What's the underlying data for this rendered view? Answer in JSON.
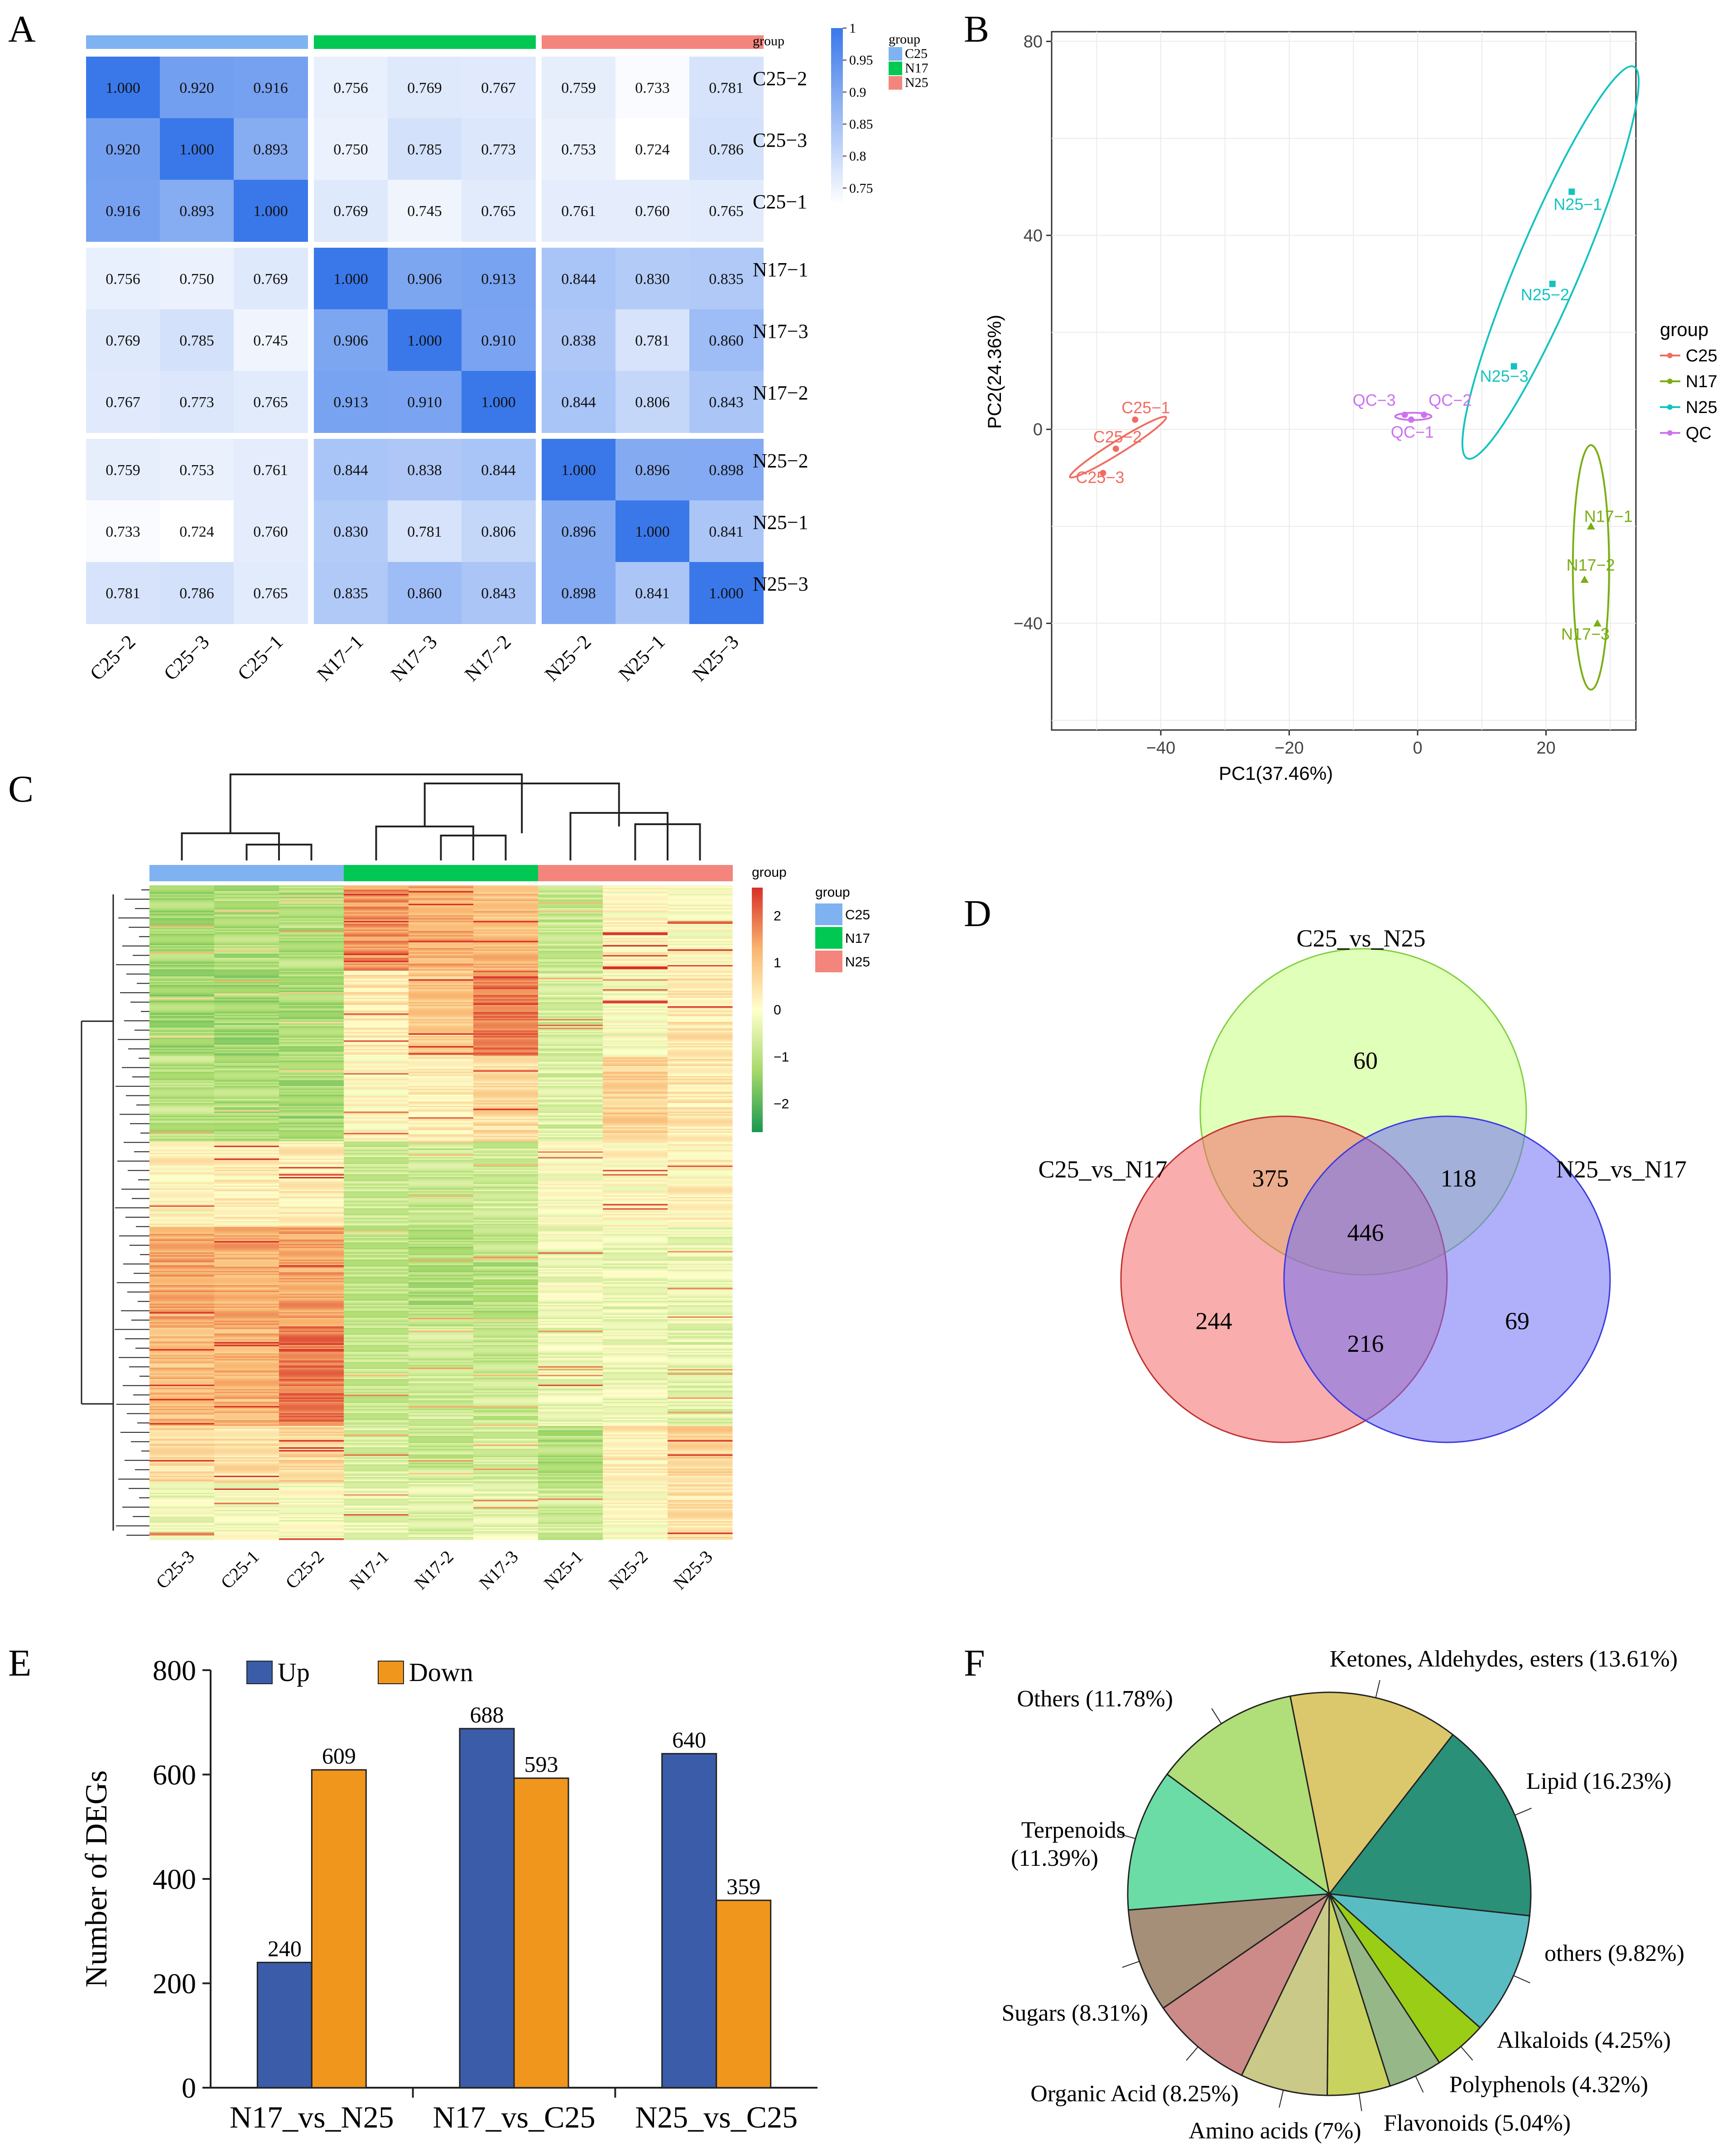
{
  "panel_labels": {
    "A": "A",
    "B": "B",
    "C": "C",
    "D": "D",
    "E": "E",
    "F": "F"
  },
  "colors": {
    "C25": "#7fb2f0",
    "N17": "#00c853",
    "N25": "#f4857d",
    "pca_C25": "#f06c5f",
    "pca_N17": "#7aae13",
    "pca_N25": "#14c3c0",
    "pca_QC": "#cc72ee",
    "up": "#3a5ca9",
    "down": "#f0961c",
    "venn_a": "#ccff88",
    "venn_b": "#f46a6a",
    "venn_c": "#6f6ff5"
  },
  "chart_data": [
    {
      "panel": "A",
      "type": "heatmap",
      "title": "",
      "samples": [
        "C25−2",
        "C25−3",
        "C25−1",
        "N17−1",
        "N17−3",
        "N17−2",
        "N25−2",
        "N25−1",
        "N25−3"
      ],
      "groups": [
        "C25",
        "C25",
        "C25",
        "N17",
        "N17",
        "N17",
        "N25",
        "N25",
        "N25"
      ],
      "matrix": [
        [
          "1.000",
          "0.920",
          "0.916",
          "0.756",
          "0.769",
          "0.767",
          "0.759",
          "0.733",
          "0.781"
        ],
        [
          "0.920",
          "1.000",
          "0.893",
          "0.750",
          "0.785",
          "0.773",
          "0.753",
          "0.724",
          "0.786"
        ],
        [
          "0.916",
          "0.893",
          "1.000",
          "0.769",
          "0.745",
          "0.765",
          "0.761",
          "0.760",
          "0.765"
        ],
        [
          "0.756",
          "0.750",
          "0.769",
          "1.000",
          "0.906",
          "0.913",
          "0.844",
          "0.830",
          "0.835"
        ],
        [
          "0.769",
          "0.785",
          "0.745",
          "0.906",
          "1.000",
          "0.910",
          "0.838",
          "0.781",
          "0.860"
        ],
        [
          "0.767",
          "0.773",
          "0.765",
          "0.913",
          "0.910",
          "1.000",
          "0.844",
          "0.806",
          "0.843"
        ],
        [
          "0.759",
          "0.753",
          "0.761",
          "0.844",
          "0.838",
          "0.844",
          "1.000",
          "0.896",
          "0.898"
        ],
        [
          "0.733",
          "0.724",
          "0.760",
          "0.830",
          "0.781",
          "0.806",
          "0.896",
          "1.000",
          "0.841"
        ],
        [
          "0.781",
          "0.786",
          "0.765",
          "0.835",
          "0.860",
          "0.843",
          "0.898",
          "0.841",
          "1.000"
        ]
      ],
      "colorbar_ticks": [
        "1",
        "0.95",
        "0.9",
        "0.85",
        "0.8",
        "0.75"
      ],
      "colorbar_range": [
        0.724,
        1.0
      ],
      "annotation_title": "group",
      "legend": [
        "C25",
        "N17",
        "N25"
      ]
    },
    {
      "panel": "B",
      "type": "scatter",
      "xlabel": "PC1(37.46%)",
      "ylabel": "PC2(24.36%)",
      "xlim": [
        -57,
        34
      ],
      "ylim": [
        -62,
        82
      ],
      "xticks": [
        -40,
        -20,
        0,
        20
      ],
      "xtick_labels": [
        "−40",
        "−20",
        "0",
        "20"
      ],
      "yticks": [
        80,
        40,
        0,
        -40
      ],
      "ytick_labels": [
        "80",
        "40",
        "0",
        "−40"
      ],
      "legend_title": "group",
      "legend": [
        "C25",
        "N17",
        "N25",
        "QC"
      ],
      "points": [
        {
          "label": "C25−1",
          "group": "C25",
          "x": -44,
          "y": 2
        },
        {
          "label": "C25−2",
          "group": "C25",
          "x": -47,
          "y": -4
        },
        {
          "label": "C25−3",
          "group": "C25",
          "x": -49,
          "y": -9
        },
        {
          "label": "N25−1",
          "group": "N25",
          "x": 24,
          "y": 49
        },
        {
          "label": "N25−2",
          "group": "N25",
          "x": 21,
          "y": 30
        },
        {
          "label": "N25−3",
          "group": "N25",
          "x": 15,
          "y": 13
        },
        {
          "label": "N17−1",
          "group": "N17",
          "x": 27,
          "y": -20
        },
        {
          "label": "N17−2",
          "group": "N17",
          "x": 26,
          "y": -31
        },
        {
          "label": "N17−3",
          "group": "N17",
          "x": 28,
          "y": -40
        },
        {
          "label": "QC−3",
          "group": "QC",
          "x": -2,
          "y": 3
        },
        {
          "label": "QC−2",
          "group": "QC",
          "x": 1,
          "y": 3
        },
        {
          "label": "QC−1",
          "group": "QC",
          "x": -1,
          "y": 2
        }
      ]
    },
    {
      "panel": "C",
      "type": "heatmap",
      "samples": [
        "C25-3",
        "C25-1",
        "C25-2",
        "N17-1",
        "N17-2",
        "N17-3",
        "N25-1",
        "N25-2",
        "N25-3"
      ],
      "groups": [
        "C25",
        "C25",
        "C25",
        "N17",
        "N17",
        "N17",
        "N25",
        "N25",
        "N25"
      ],
      "annotation_title": "group",
      "legend": [
        "C25",
        "N17",
        "N25"
      ],
      "colorbar_ticks": [
        "2",
        "1",
        "0",
        "−1",
        "−2"
      ],
      "colorbar_range": [
        -2.6,
        2.6
      ],
      "block_profile": [
        {
          "rows": 60,
          "levels": [
            -1.2,
            -1.1,
            -1.1,
            1.6,
            1.3,
            1.1,
            -0.8,
            0.2,
            0.0
          ]
        },
        {
          "rows": 60,
          "levels": [
            -1.3,
            -1.3,
            -1.2,
            0.4,
            0.9,
            1.9,
            -0.6,
            -0.1,
            0.4
          ]
        },
        {
          "rows": 60,
          "levels": [
            -1.0,
            -1.1,
            -1.2,
            0.2,
            0.3,
            0.6,
            -0.5,
            0.8,
            0.4
          ]
        },
        {
          "rows": 60,
          "levels": [
            0.2,
            0.3,
            0.3,
            -0.7,
            -0.8,
            -0.7,
            0.0,
            0.1,
            0.2
          ]
        },
        {
          "rows": 70,
          "levels": [
            1.4,
            1.3,
            1.4,
            -0.9,
            -1.1,
            -1.0,
            -0.2,
            -0.3,
            -0.3
          ]
        },
        {
          "rows": 70,
          "levels": [
            1.1,
            1.2,
            1.9,
            -0.8,
            -0.7,
            -0.8,
            -0.3,
            -0.2,
            -0.4
          ]
        },
        {
          "rows": 40,
          "levels": [
            0.6,
            0.5,
            0.7,
            -0.6,
            -0.8,
            -0.6,
            -1.1,
            0.3,
            0.7
          ]
        },
        {
          "rows": 40,
          "levels": [
            -0.2,
            -0.1,
            -0.1,
            -0.4,
            -0.5,
            -0.4,
            -0.7,
            0.0,
            0.5
          ]
        }
      ]
    },
    {
      "panel": "D",
      "type": "venn",
      "sets": [
        "C25_vs_N25",
        "C25_vs_N17",
        "N25_vs_N17"
      ],
      "regions": {
        "only_C25_vs_N25": "60",
        "only_C25_vs_N17": "244",
        "only_N25_vs_N17": "69",
        "C25_vs_N25_and_C25_vs_N17": "375",
        "C25_vs_N25_and_N25_vs_N17": "118",
        "C25_vs_N17_and_N25_vs_N17": "216",
        "all_three": "446"
      }
    },
    {
      "panel": "E",
      "type": "bar",
      "ylabel": "Number of DEGs",
      "ylim": [
        0,
        800
      ],
      "yticks": [
        "800",
        "600",
        "400",
        "200",
        "0"
      ],
      "categories": [
        "N17_vs_N25",
        "N17_vs_C25",
        "N25_vs_C25"
      ],
      "series": [
        {
          "name": "Up",
          "values": [
            240,
            688,
            640
          ]
        },
        {
          "name": "Down",
          "values": [
            609,
            593,
            359
          ]
        }
      ]
    },
    {
      "panel": "F",
      "type": "pie",
      "slices": [
        {
          "label": "Lipid (16.23%)",
          "value": 16.23,
          "color": "#2a9077"
        },
        {
          "label": "others (9.82%)",
          "value": 9.82,
          "color": "#59bcc3"
        },
        {
          "label": "Alkaloids (4.25%)",
          "value": 4.25,
          "color": "#9acd16"
        },
        {
          "label": "Polyphenols (4.32%)",
          "value": 4.32,
          "color": "#96b888"
        },
        {
          "label": "Flavonoids (5.04%)",
          "value": 5.04,
          "color": "#c7d35e"
        },
        {
          "label": "Amino acids (7%)",
          "value": 7.0,
          "color": "#cbc988"
        },
        {
          "label": "Organic Acid (8.25%)",
          "value": 8.25,
          "color": "#cc8a88"
        },
        {
          "label": "Sugars (8.31%)",
          "value": 8.31,
          "color": "#a58f78"
        },
        {
          "label": "Terpenoids (11.39%)",
          "value": 11.39,
          "color": "#6bdca6"
        },
        {
          "label": "Others (11.78%)",
          "value": 11.78,
          "color": "#b0de78"
        },
        {
          "label": "Ketones, Aldehydes, esters (13.61%)",
          "value": 13.61,
          "color": "#dcc86c"
        }
      ]
    }
  ]
}
